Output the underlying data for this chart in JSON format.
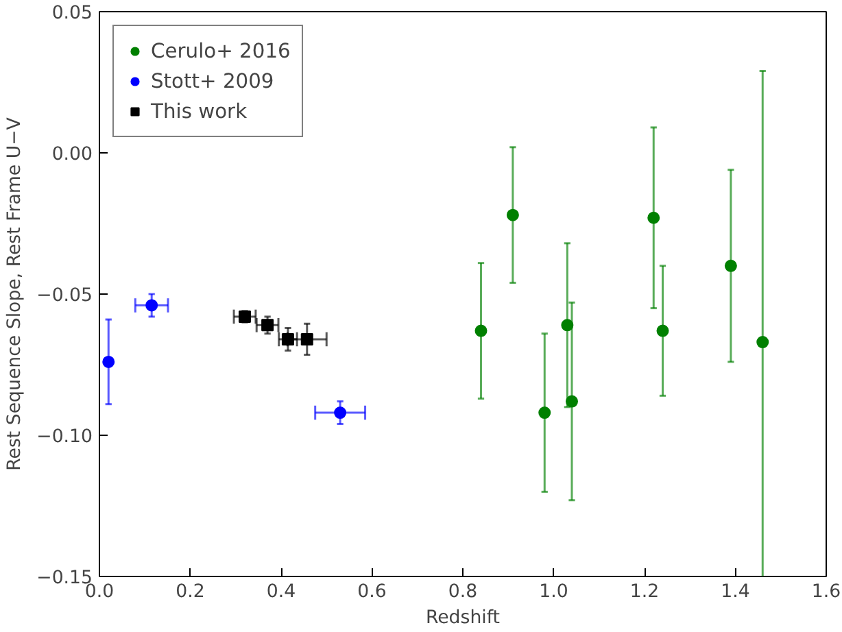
{
  "chart_data": {
    "type": "scatter",
    "xlabel": "Redshift",
    "ylabel": "Rest Sequence Slope, Rest Frame U−V",
    "xlim": [
      0.0,
      1.6
    ],
    "ylim": [
      -0.15,
      0.05
    ],
    "xticks": [
      {
        "value": 0.0,
        "label": "0.0"
      },
      {
        "value": 0.2,
        "label": "0.2"
      },
      {
        "value": 0.4,
        "label": "0.4"
      },
      {
        "value": 0.6,
        "label": "0.6"
      },
      {
        "value": 0.8,
        "label": "0.8"
      },
      {
        "value": 1.0,
        "label": "1.0"
      },
      {
        "value": 1.2,
        "label": "1.2"
      },
      {
        "value": 1.4,
        "label": "1.4"
      },
      {
        "value": 1.6,
        "label": "1.6"
      }
    ],
    "yticks": [
      {
        "value": -0.15,
        "label": "−0.15"
      },
      {
        "value": -0.1,
        "label": "−0.10"
      },
      {
        "value": -0.05,
        "label": "−0.05"
      },
      {
        "value": 0.0,
        "label": "0.00"
      },
      {
        "value": 0.05,
        "label": "0.05"
      }
    ],
    "grid": false,
    "legend": "top left",
    "series": [
      {
        "name": "Cerulo+ 2016",
        "color": "#008000",
        "marker": "circle",
        "x": [
          0.84,
          0.91,
          0.98,
          1.03,
          1.04,
          1.22,
          1.24,
          1.39,
          1.46
        ],
        "values": [
          -0.063,
          -0.022,
          -0.092,
          -0.061,
          -0.088,
          -0.023,
          -0.063,
          -0.04,
          -0.067
        ],
        "errors": [
          0.024,
          0.024,
          0.028,
          0.029,
          0.035,
          0.032,
          0.023,
          0.034,
          [
            -0.15,
            0.029
          ]
        ]
      },
      {
        "name": "Stott+ 2009",
        "color": "#0000ff",
        "marker": "circle",
        "x": [
          0.02,
          0.115,
          0.53
        ],
        "values": [
          -0.074,
          -0.054,
          -0.092
        ],
        "errors": [
          0.015,
          0.004,
          0.004
        ],
        "xerrors": [
          null,
          0.036,
          0.055
        ]
      },
      {
        "name": "This work",
        "color": "#000000",
        "marker": "square",
        "x": [
          0.32,
          0.37,
          0.415,
          0.457
        ],
        "values": [
          -0.058,
          -0.061,
          -0.066,
          -0.066
        ],
        "errors": [
          0.002,
          0.003,
          0.004,
          0.0055
        ],
        "xerrors": [
          0.024,
          0.024,
          0.02,
          0.043
        ]
      }
    ]
  }
}
